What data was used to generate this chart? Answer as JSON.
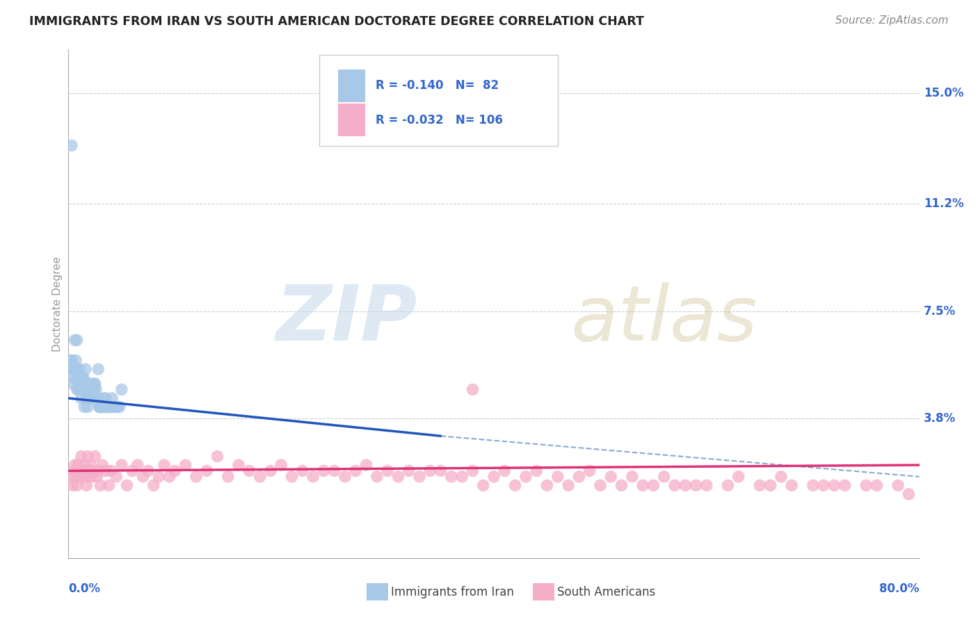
{
  "title": "IMMIGRANTS FROM IRAN VS SOUTH AMERICAN DOCTORATE DEGREE CORRELATION CHART",
  "source": "Source: ZipAtlas.com",
  "ylabel": "Doctorate Degree",
  "ytick_labels": [
    "3.8%",
    "7.5%",
    "11.2%",
    "15.0%"
  ],
  "ytick_values": [
    3.8,
    7.5,
    11.2,
    15.0
  ],
  "xlim": [
    0.0,
    80.0
  ],
  "ylim": [
    -1.0,
    16.5
  ],
  "legend_iran": "Immigrants from Iran",
  "legend_sa": "South Americans",
  "R_iran": "-0.140",
  "N_iran": "82",
  "R_sa": "-0.032",
  "N_sa": "106",
  "color_iran": "#a8c8e8",
  "color_sa": "#f5aec8",
  "color_iran_line": "#2255bb",
  "color_sa_line": "#dd3377",
  "color_dashed": "#88aacc",
  "iran_x": [
    1.5,
    2.8,
    5.0,
    0.3,
    0.6,
    0.4,
    0.8,
    1.0,
    0.5,
    1.2,
    0.7,
    1.8,
    2.0,
    2.5,
    1.3,
    0.9,
    1.6,
    3.5,
    2.2,
    1.1,
    0.8,
    2.6,
    4.2,
    0.4,
    1.7,
    2.1,
    0.6,
    1.4,
    3.0,
    2.7,
    0.2,
    1.9,
    2.4,
    3.6,
    1.0,
    2.9,
    1.8,
    0.8,
    3.3,
    1.5,
    2.1,
    4.5,
    0.5,
    1.2,
    2.8,
    3.1,
    0.9,
    1.7,
    2.5,
    3.9,
    1.3,
    2.0,
    4.8,
    1.6,
    0.5,
    2.3,
    3.4,
    1.1,
    0.7,
    2.6,
    1.4,
    3.7,
    2.2,
    0.3,
    1.8,
    2.9,
    4.1,
    1.0,
    3.5,
    1.5,
    2.7,
    0.8,
    1.9,
    3.8,
    2.4,
    1.2,
    0.6,
    4.6,
    2.1,
    1.7,
    3.2,
    0.4
  ],
  "iran_y": [
    4.2,
    5.5,
    4.8,
    13.2,
    6.5,
    5.2,
    4.8,
    5.0,
    5.5,
    4.5,
    5.8,
    4.2,
    4.5,
    5.0,
    5.2,
    4.8,
    5.5,
    4.5,
    4.8,
    5.0,
    6.5,
    4.8,
    4.2,
    5.0,
    4.8,
    4.5,
    5.5,
    5.2,
    4.2,
    4.5,
    5.8,
    4.5,
    4.8,
    4.2,
    5.5,
    4.2,
    4.8,
    5.2,
    4.5,
    4.8,
    5.0,
    4.2,
    5.5,
    4.8,
    4.5,
    4.2,
    5.2,
    4.8,
    4.5,
    4.2,
    4.8,
    4.5,
    4.2,
    4.8,
    5.5,
    4.5,
    4.2,
    5.0,
    5.5,
    4.5,
    5.2,
    4.2,
    4.8,
    5.8,
    4.5,
    4.2,
    4.5,
    5.2,
    4.2,
    5.0,
    4.5,
    5.5,
    4.8,
    4.2,
    5.0,
    4.8,
    5.5,
    4.2,
    4.8,
    4.5,
    4.2,
    5.5
  ],
  "sa_x": [
    0.2,
    0.4,
    0.5,
    0.6,
    0.7,
    0.8,
    0.9,
    1.0,
    1.1,
    1.2,
    1.3,
    1.4,
    1.5,
    1.6,
    1.7,
    1.8,
    1.9,
    2.0,
    2.1,
    2.2,
    2.3,
    2.5,
    2.7,
    2.8,
    3.0,
    3.2,
    3.5,
    3.8,
    4.0,
    4.5,
    5.0,
    5.5,
    6.0,
    6.5,
    7.0,
    7.5,
    8.0,
    8.5,
    9.0,
    9.5,
    10.0,
    11.0,
    12.0,
    13.0,
    14.0,
    15.0,
    16.0,
    17.0,
    18.0,
    19.0,
    20.0,
    21.0,
    22.0,
    23.0,
    24.0,
    25.0,
    26.0,
    27.0,
    28.0,
    29.0,
    30.0,
    31.0,
    32.0,
    33.0,
    34.0,
    35.0,
    36.0,
    37.0,
    38.0,
    39.0,
    40.0,
    41.0,
    42.0,
    43.0,
    44.0,
    45.0,
    46.0,
    47.0,
    48.0,
    49.0,
    50.0,
    51.0,
    52.0,
    53.0,
    54.0,
    55.0,
    56.0,
    57.0,
    58.0,
    59.0,
    60.0,
    62.0,
    63.0,
    65.0,
    66.0,
    67.0,
    68.0,
    70.0,
    71.0,
    72.0,
    73.0,
    75.0,
    76.0,
    78.0,
    79.0,
    38.0
  ],
  "sa_y": [
    1.8,
    1.5,
    2.0,
    2.2,
    1.8,
    1.5,
    2.2,
    2.0,
    1.8,
    2.5,
    2.0,
    1.8,
    2.2,
    2.0,
    1.5,
    2.5,
    1.8,
    2.0,
    2.2,
    1.8,
    2.0,
    2.5,
    1.8,
    2.0,
    1.5,
    2.2,
    2.0,
    1.5,
    2.0,
    1.8,
    2.2,
    1.5,
    2.0,
    2.2,
    1.8,
    2.0,
    1.5,
    1.8,
    2.2,
    1.8,
    2.0,
    2.2,
    1.8,
    2.0,
    2.5,
    1.8,
    2.2,
    2.0,
    1.8,
    2.0,
    2.2,
    1.8,
    2.0,
    1.8,
    2.0,
    2.0,
    1.8,
    2.0,
    2.2,
    1.8,
    2.0,
    1.8,
    2.0,
    1.8,
    2.0,
    2.0,
    1.8,
    1.8,
    2.0,
    1.5,
    1.8,
    2.0,
    1.5,
    1.8,
    2.0,
    1.5,
    1.8,
    1.5,
    1.8,
    2.0,
    1.5,
    1.8,
    1.5,
    1.8,
    1.5,
    1.5,
    1.8,
    1.5,
    1.5,
    1.5,
    1.5,
    1.5,
    1.8,
    1.5,
    1.5,
    1.8,
    1.5,
    1.5,
    1.5,
    1.5,
    1.5,
    1.5,
    1.5,
    1.5,
    1.2,
    4.8
  ]
}
